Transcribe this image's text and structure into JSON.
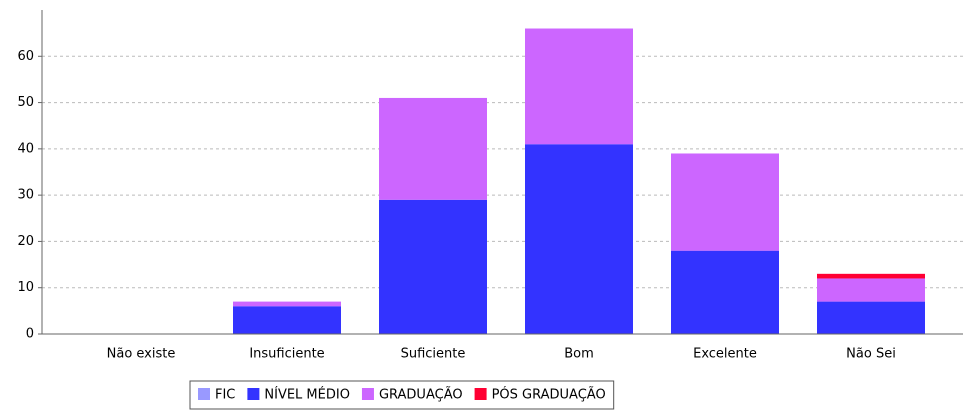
{
  "chart_data": {
    "type": "stacked_bar",
    "categories": [
      "Não existe",
      "Insuficiente",
      "Suficiente",
      "Bom",
      "Excelente",
      "Não Sei"
    ],
    "series": [
      {
        "name": "FIC",
        "color": "#9999ff",
        "values": [
          0,
          0,
          0,
          0,
          0,
          0
        ]
      },
      {
        "name": "NÍVEL MÉDIO",
        "color": "#3333ff",
        "values": [
          0,
          6,
          29,
          41,
          18,
          7
        ]
      },
      {
        "name": "GRADUAÇÃO",
        "color": "#cc66ff",
        "values": [
          0,
          1,
          22,
          25,
          21,
          5
        ]
      },
      {
        "name": "PÓS GRADUAÇÃO",
        "color": "#ff0033",
        "values": [
          0,
          0,
          0,
          0,
          0,
          1
        ]
      }
    ],
    "ylim": [
      0,
      70
    ],
    "yticks": [
      0,
      10,
      20,
      30,
      40,
      50,
      60
    ],
    "grid": true,
    "legend": "bottom"
  }
}
